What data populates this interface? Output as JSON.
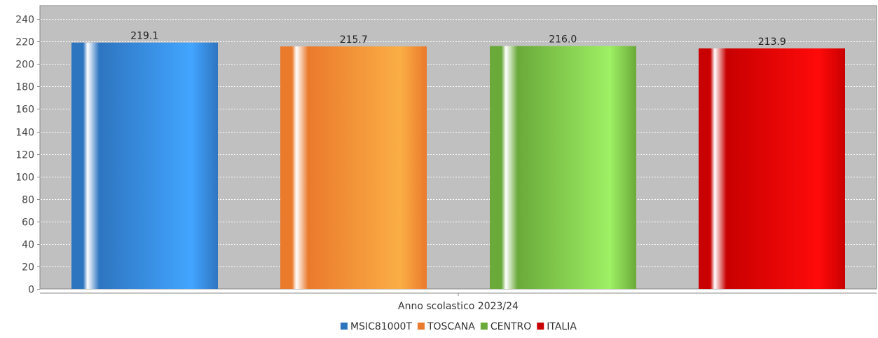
{
  "chart_data": {
    "type": "bar",
    "categories": [
      "Anno scolastico 2023/24"
    ],
    "series": [
      {
        "name": "MSIC81000T",
        "values": [
          219.1
        ],
        "value_label": "219.1",
        "color": "#2e75c0",
        "highlight": "#42a5ff"
      },
      {
        "name": "TOSCANA",
        "values": [
          215.7
        ],
        "value_label": "215.7",
        "color": "#ea7a2c",
        "highlight": "#fbae45"
      },
      {
        "name": "CENTRO",
        "values": [
          216.0
        ],
        "value_label": "216.0",
        "color": "#6aaa3a",
        "highlight": "#9ef064"
      },
      {
        "name": "ITALIA",
        "values": [
          213.9
        ],
        "value_label": "213.9",
        "color": "#c80000",
        "highlight": "#ff0a0a"
      }
    ],
    "yticks": [
      "0",
      "20",
      "40",
      "60",
      "80",
      "100",
      "120",
      "140",
      "160",
      "180",
      "200",
      "220",
      "240"
    ],
    "ylim": [
      0,
      252
    ],
    "grid": true,
    "legend_position": "bottom-center",
    "plot_background": "#c0c0c0",
    "gridline_color": "#ffffff"
  }
}
